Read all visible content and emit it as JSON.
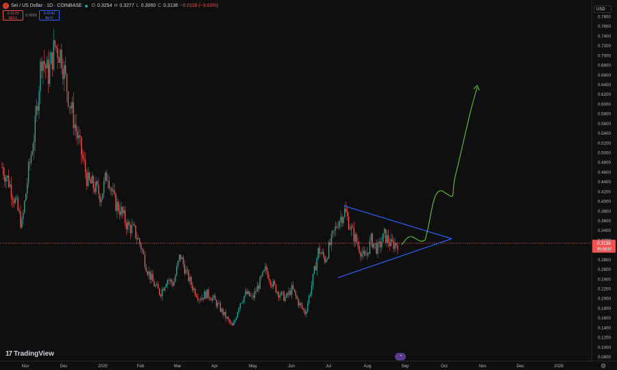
{
  "header": {
    "symbol": "Sei / US Dollar · 1D · COINBASE",
    "o_label": "O",
    "o_value": "0.3254",
    "h_label": "H",
    "h_value": "0.3277",
    "l_label": "L",
    "l_value": "0.3060",
    "c_label": "C",
    "c_value": "0.3136",
    "change": "−0.0118 (−3.63%)"
  },
  "trade": {
    "sell_price": "0.3139",
    "sell_label": "SELL",
    "spread": "0.0002",
    "buy_price": "0.3141",
    "buy_label": "BUY"
  },
  "currency": "USD",
  "brand": {
    "mark": "17",
    "name": "TradingView"
  },
  "price_tag": {
    "price": "0.3136",
    "countdown": "06:04:37",
    "color": "#ef5350"
  },
  "colors": {
    "background": "#0f0f0f",
    "up": "#26a69a",
    "down": "#ef5350",
    "triangle": "#2962ff",
    "projection": "#6ac23c"
  },
  "chart_data": {
    "type": "candlestick",
    "y_ticks": [
      "0.7800",
      "0.7600",
      "0.7400",
      "0.7200",
      "0.7000",
      "0.6800",
      "0.6600",
      "0.6400",
      "0.6200",
      "0.6000",
      "0.5800",
      "0.5600",
      "0.5400",
      "0.5200",
      "0.5000",
      "0.4800",
      "0.4600",
      "0.4400",
      "0.4200",
      "0.4000",
      "0.3800",
      "0.3600",
      "0.3400",
      "0.3200",
      "0.3000",
      "0.2800",
      "0.2600",
      "0.2400",
      "0.2200",
      "0.2000",
      "0.1800",
      "0.1600",
      "0.1400",
      "0.1200",
      "0.1000",
      "0.0800"
    ],
    "x_ticks": [
      "Nov",
      "Dec",
      "2025",
      "Feb",
      "Mar",
      "Apr",
      "May",
      "Jun",
      "Jul",
      "Aug",
      "Sep",
      "Oct",
      "Nov",
      "Dec",
      "2026"
    ],
    "ylim": [
      0.075,
      0.79
    ],
    "close_series": [
      [
        0,
        0.47
      ],
      [
        0.02,
        0.44
      ],
      [
        0.04,
        0.4
      ],
      [
        0.06,
        0.35
      ],
      [
        0.08,
        0.46
      ],
      [
        0.1,
        0.55
      ],
      [
        0.12,
        0.7
      ],
      [
        0.14,
        0.66
      ],
      [
        0.16,
        0.72
      ],
      [
        0.18,
        0.7
      ],
      [
        0.2,
        0.62
      ],
      [
        0.22,
        0.56
      ],
      [
        0.24,
        0.5
      ],
      [
        0.26,
        0.44
      ],
      [
        0.28,
        0.43
      ],
      [
        0.3,
        0.41
      ],
      [
        0.32,
        0.46
      ],
      [
        0.34,
        0.4
      ],
      [
        0.36,
        0.38
      ],
      [
        0.38,
        0.35
      ],
      [
        0.4,
        0.34
      ],
      [
        0.42,
        0.31
      ],
      [
        0.44,
        0.26
      ],
      [
        0.46,
        0.23
      ],
      [
        0.48,
        0.21
      ],
      [
        0.5,
        0.24
      ],
      [
        0.52,
        0.23
      ],
      [
        0.54,
        0.29
      ],
      [
        0.56,
        0.25
      ],
      [
        0.58,
        0.22
      ],
      [
        0.6,
        0.2
      ],
      [
        0.62,
        0.21
      ],
      [
        0.64,
        0.2
      ],
      [
        0.66,
        0.18
      ],
      [
        0.68,
        0.16
      ],
      [
        0.7,
        0.14
      ],
      [
        0.72,
        0.19
      ],
      [
        0.74,
        0.21
      ],
      [
        0.76,
        0.2
      ],
      [
        0.78,
        0.23
      ],
      [
        0.8,
        0.26
      ],
      [
        0.82,
        0.23
      ],
      [
        0.84,
        0.21
      ],
      [
        0.86,
        0.2
      ],
      [
        0.88,
        0.22
      ],
      [
        0.9,
        0.19
      ],
      [
        0.92,
        0.17
      ],
      [
        0.94,
        0.23
      ],
      [
        0.96,
        0.3
      ],
      [
        0.98,
        0.28
      ],
      [
        1.0,
        0.32
      ],
      [
        1.02,
        0.36
      ],
      [
        1.04,
        0.38
      ],
      [
        1.06,
        0.34
      ],
      [
        1.08,
        0.31
      ],
      [
        1.1,
        0.28
      ],
      [
        1.12,
        0.32
      ],
      [
        1.14,
        0.3
      ],
      [
        1.16,
        0.33
      ],
      [
        1.18,
        0.31
      ],
      [
        1.2,
        0.3136
      ]
    ],
    "annotations": {
      "triangle": {
        "type": "symmetrical-triangle",
        "color": "#2962ff"
      },
      "projection": {
        "type": "bullish-arrow",
        "color": "#6ac23c",
        "target": 0.635
      }
    },
    "current_price": 0.3136,
    "grid": false,
    "legend": "none"
  }
}
